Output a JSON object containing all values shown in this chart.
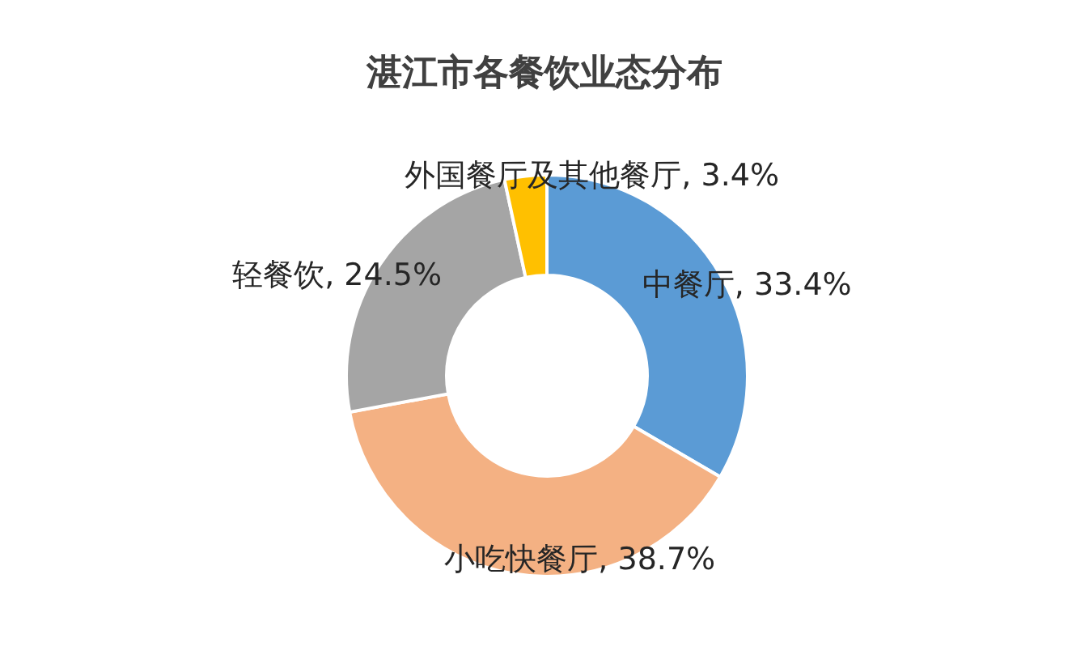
{
  "chart_data": {
    "type": "donut",
    "title": "湛江市各餐饮业态分布",
    "categories": [
      "中餐厅",
      "小吃快餐厅",
      "轻餐饮",
      "外国餐厅及其他餐厅"
    ],
    "values": [
      33.4,
      38.7,
      24.5,
      3.4
    ],
    "value_labels": [
      ", 33.4%",
      ", 38.7%",
      ", 24.5%",
      ", 3.4%"
    ],
    "colors": [
      "#5b9bd5",
      "#f4b183",
      "#a5a5a5",
      "#ffc000"
    ],
    "legend": false
  }
}
